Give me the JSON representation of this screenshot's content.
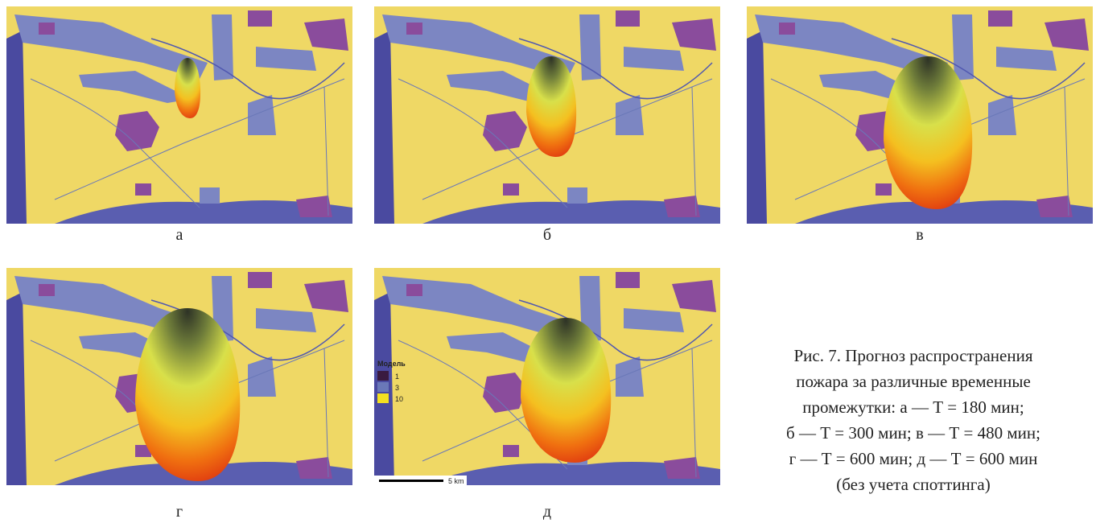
{
  "panels": [
    {
      "label": "а"
    },
    {
      "label": "б"
    },
    {
      "label": "в"
    },
    {
      "label": "г"
    },
    {
      "label": "д"
    }
  ],
  "legend": {
    "title": "Модель",
    "items": [
      "1",
      "3",
      "10"
    ],
    "scale": "5 km"
  },
  "caption": {
    "lines": [
      "Рис. 7. Прогноз распространения",
      "пожара за различные временные",
      "промежутки: а — Т = 180 мин;",
      "б — Т = 300 мин; в — Т = 480 мин;",
      "г — Т = 600 мин; д — Т = 600 мин",
      "(без учета споттинга)"
    ]
  }
}
